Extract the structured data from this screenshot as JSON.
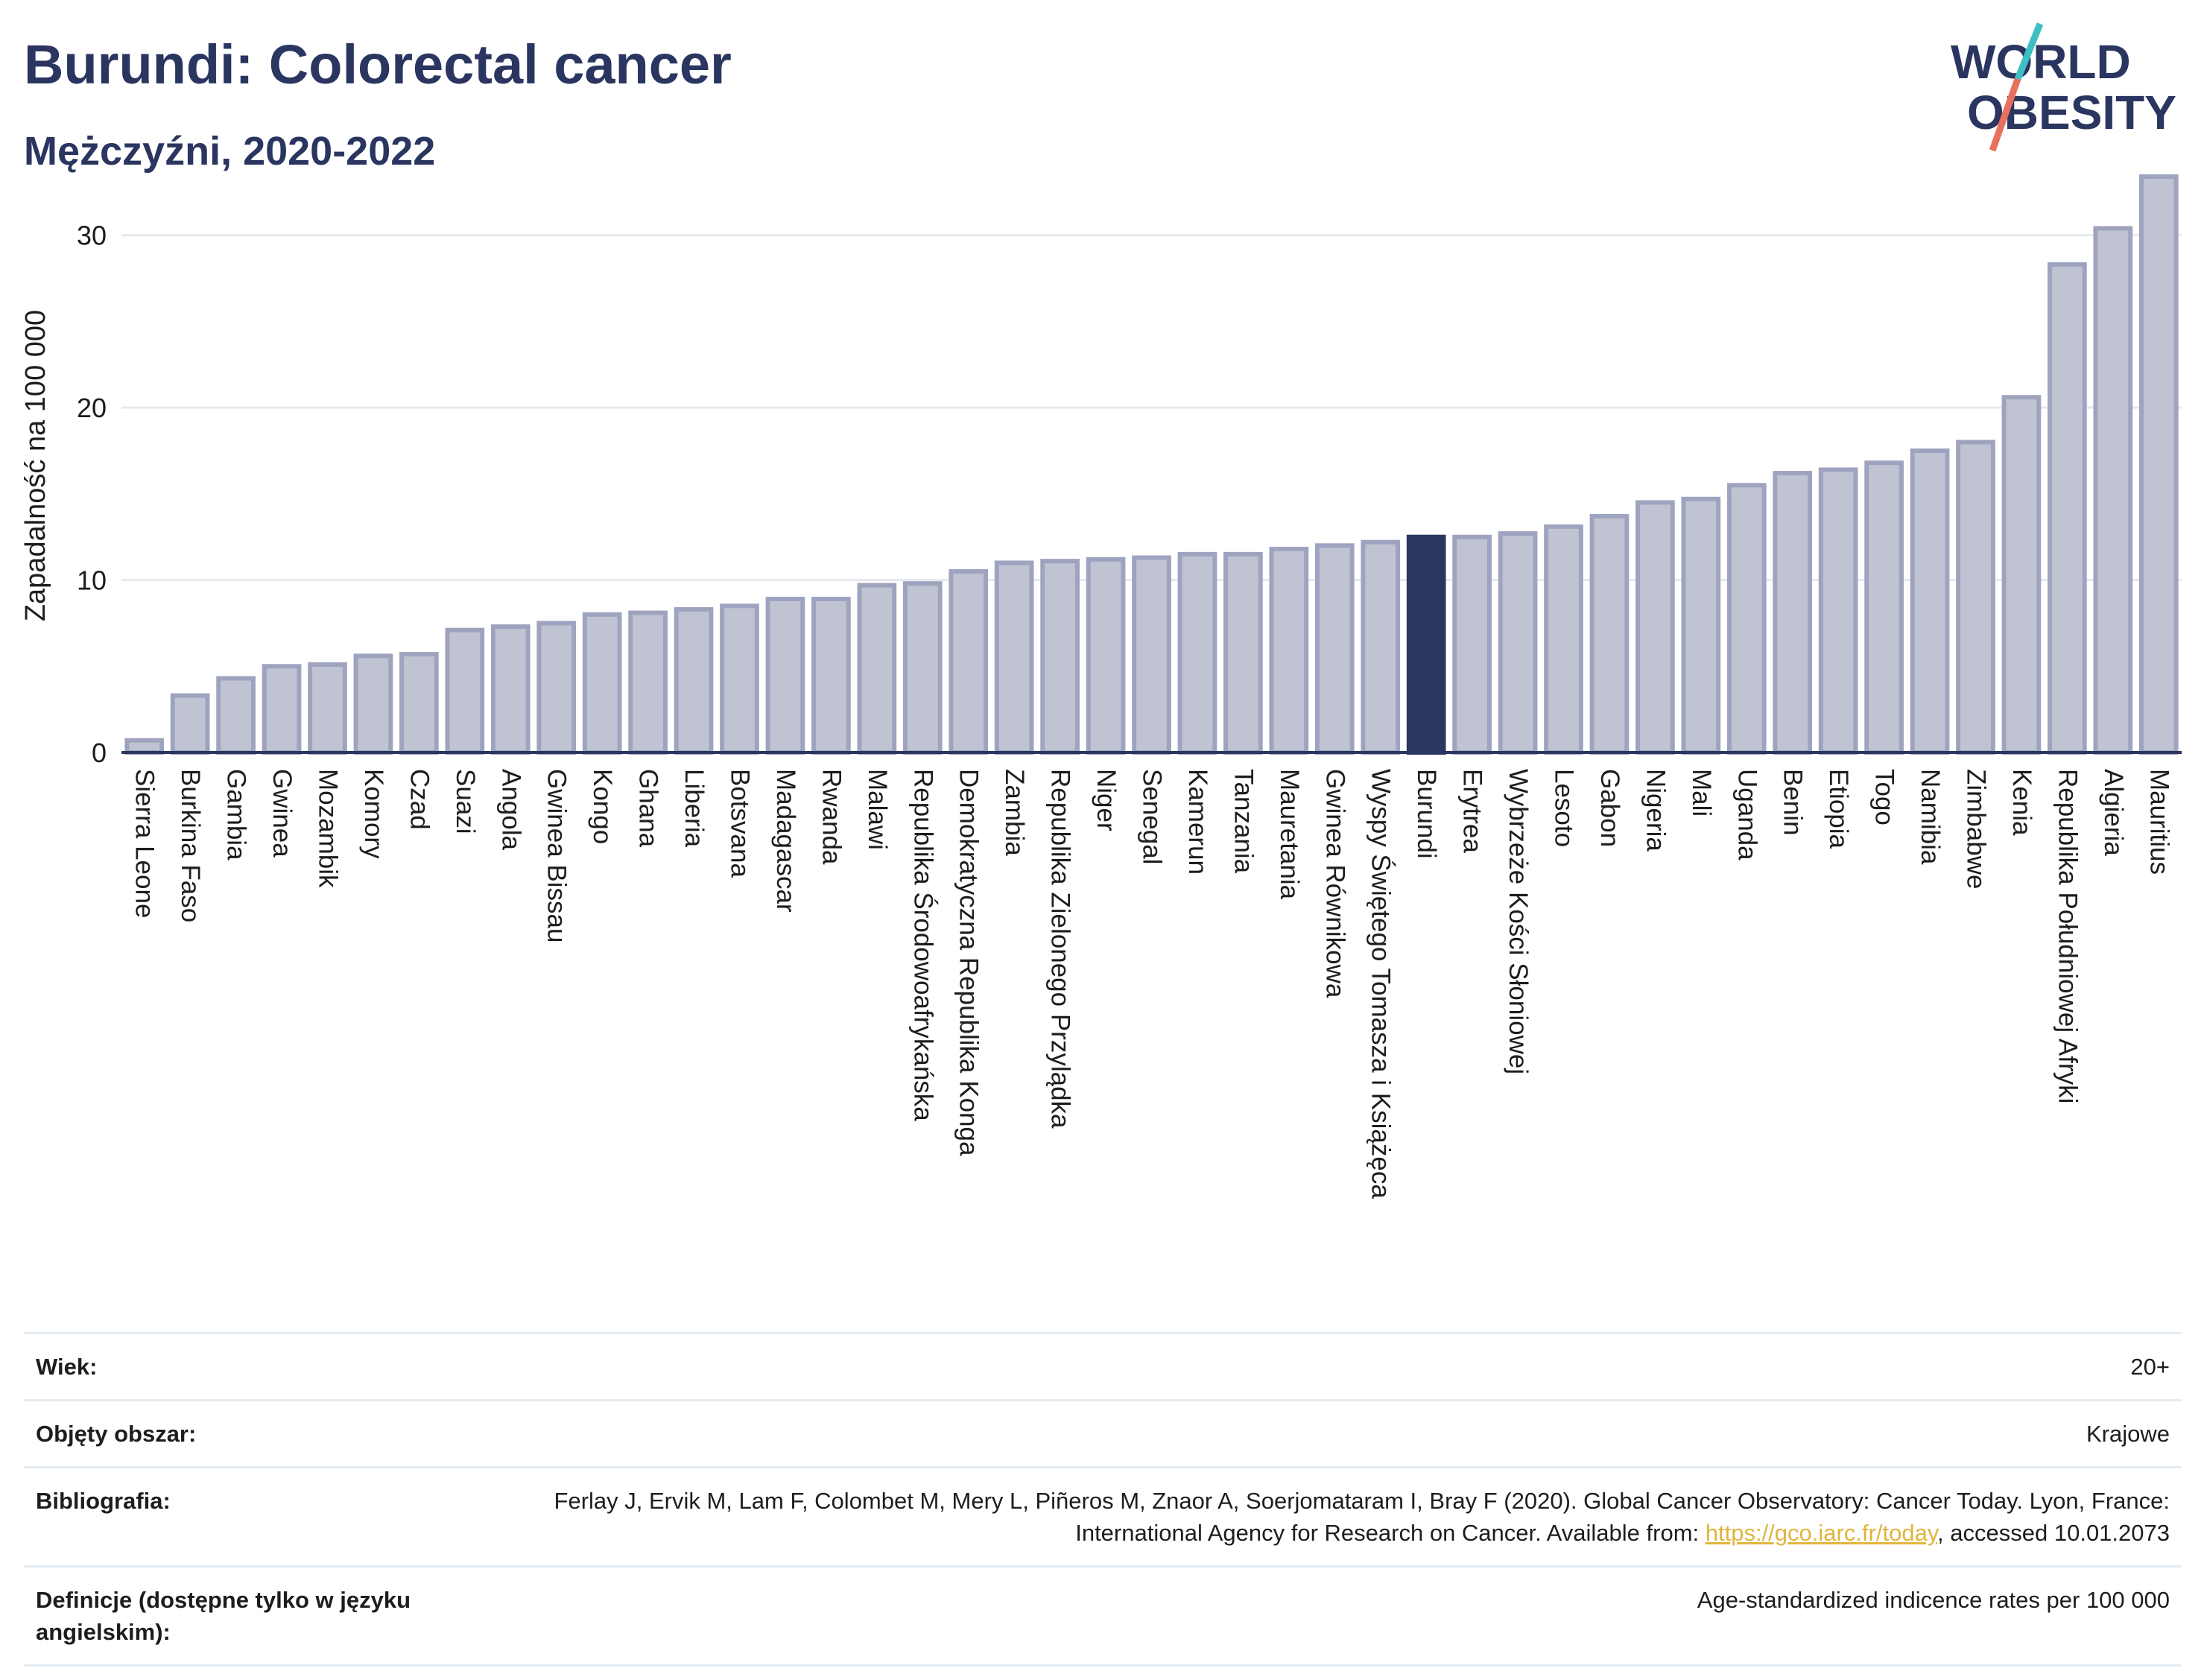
{
  "header": {
    "title": "Burundi: Colorectal cancer",
    "subtitle": "Mężczyźni, 2020-2022"
  },
  "logo": {
    "line1": "WORLD",
    "line2": "OBESITY",
    "colors": {
      "text": "#2a3560",
      "slash_top": "#3dbfc4",
      "slash_bottom": "#e8705e"
    }
  },
  "chart_data": {
    "type": "bar",
    "ylabel": "Zapadalność na 100 000",
    "ylim": [
      0,
      35
    ],
    "yticks": [
      0,
      10,
      20,
      30
    ],
    "grid": true,
    "highlight": "Burundi",
    "colors": {
      "bar": "#c0c4d2",
      "bar_border": "#9ea4bf",
      "highlight": "#2a3560",
      "grid": "#e6e9ef",
      "axis": "#2a3560"
    },
    "categories": [
      "Sierra Leone",
      "Burkina Faso",
      "Gambia",
      "Gwinea",
      "Mozambik",
      "Komory",
      "Czad",
      "Suazi",
      "Angola",
      "Gwinea Bissau",
      "Kongo",
      "Ghana",
      "Liberia",
      "Botsvana",
      "Madagascar",
      "Rwanda",
      "Malawi",
      "Republika Środowoafrykańska",
      "Demokratyczna Republika Konga",
      "Zambia",
      "Republika Zielonego Przylądka",
      "Niger",
      "Senegal",
      "Kamerun",
      "Tanzania",
      "Mauretania",
      "Gwinea Równikowa",
      "Wyspy Świętego Tomasza i Książęca",
      "Burundi",
      "Erytrea",
      "Wybrzeże Kości Słoniowej",
      "Lesoto",
      "Gabon",
      "Nigeria",
      "Mali",
      "Uganda",
      "Benin",
      "Etiopia",
      "Togo",
      "Namibia",
      "Zimbabwe",
      "Kenia",
      "Republika Południowej Afryki",
      "Algieria",
      "Mauritius"
    ],
    "values": [
      0.7,
      3.3,
      4.3,
      5.0,
      5.1,
      5.6,
      5.7,
      7.1,
      7.3,
      7.5,
      8.0,
      8.1,
      8.3,
      8.5,
      8.9,
      8.9,
      9.7,
      9.8,
      10.5,
      11.0,
      11.1,
      11.2,
      11.3,
      11.5,
      11.5,
      11.8,
      12.0,
      12.2,
      12.5,
      12.5,
      12.7,
      13.1,
      13.7,
      14.5,
      14.7,
      15.5,
      16.2,
      16.4,
      16.8,
      17.5,
      18.0,
      20.6,
      28.3,
      30.4,
      33.4
    ]
  },
  "info": {
    "rows": [
      {
        "label": "Wiek:",
        "value": "20+"
      },
      {
        "label": "Objęty obszar:",
        "value": "Krajowe"
      },
      {
        "label": "Bibliografia:",
        "value_pre": "Ferlay J, Ervik M, Lam F, Colombet M, Mery L, Piñeros M, Znaor A, Soerjomataram I, Bray F (2020). Global Cancer Observatory: Cancer Today. Lyon, France: International Agency for Research on Cancer. Available from: ",
        "link": "https://gco.iarc.fr/today",
        "value_post": ", accessed 10.01.2073"
      },
      {
        "label": "Definicje (dostępne tylko w języku angielskim):",
        "value": "Age-standardized indicence rates per 100 000"
      }
    ]
  }
}
